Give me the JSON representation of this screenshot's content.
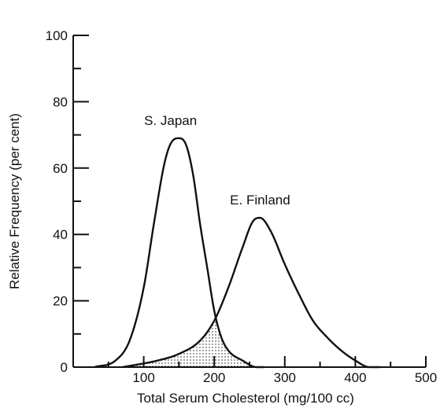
{
  "chart_data": {
    "type": "line",
    "title": "",
    "xlabel": "Total Serum Cholesterol (mg/100 cc)",
    "ylabel": "Relative Frequency (per cent)",
    "xlim": [
      0,
      500
    ],
    "ylim": [
      0,
      100
    ],
    "x_major_ticks": [
      100,
      200,
      300,
      400,
      500
    ],
    "x_minor_ticks": [
      0,
      50,
      150,
      250,
      350,
      450
    ],
    "y_major_ticks": [
      0,
      20,
      40,
      60,
      80,
      100
    ],
    "y_minor_ticks": [
      10,
      30,
      50,
      70,
      90
    ],
    "grid": false,
    "legend": "none",
    "series": [
      {
        "name": "S. Japan",
        "x": [
          30,
          60,
          80,
          100,
          115,
          130,
          140,
          150,
          160,
          170,
          180,
          190,
          200,
          210,
          220,
          240,
          260,
          270
        ],
        "y": [
          0,
          2,
          8,
          24,
          44,
          62,
          68,
          69,
          67,
          58,
          43,
          30,
          17,
          9,
          5,
          2,
          0,
          0
        ]
      },
      {
        "name": "E. Finland",
        "x": [
          70,
          120,
          150,
          180,
          200,
          220,
          240,
          255,
          265,
          280,
          300,
          320,
          340,
          360,
          380,
          400,
          420,
          435
        ],
        "y": [
          0,
          2,
          4,
          8,
          14,
          24,
          36,
          44,
          45,
          41,
          31,
          22,
          14,
          9,
          5,
          2,
          0,
          0
        ]
      }
    ],
    "annotations": [
      {
        "text": "S. Japan",
        "x": 138,
        "y": 73
      },
      {
        "text": "E. Finland",
        "x": 265,
        "y": 49
      }
    ],
    "shaded_overlap": true,
    "x_tick_labels": [
      "100",
      "200",
      "300",
      "400",
      "500"
    ],
    "y_tick_labels": [
      "0",
      "20",
      "40",
      "60",
      "80",
      "100"
    ]
  }
}
